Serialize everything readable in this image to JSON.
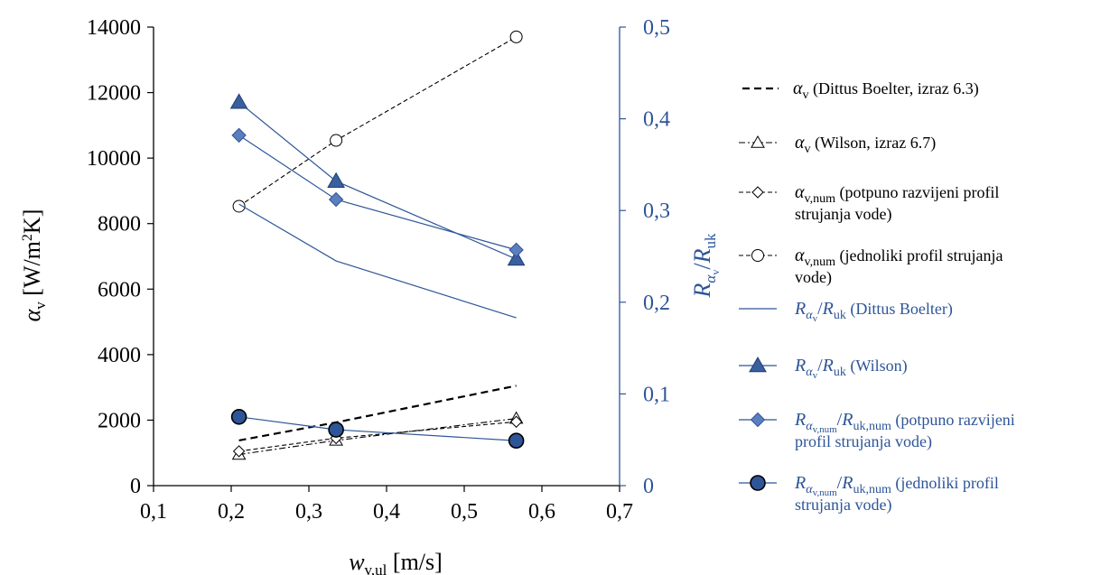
{
  "chart_data": {
    "type": "line",
    "xlabel": {
      "main": "w",
      "sub": "v,ul",
      "unit": " [m/s]"
    },
    "ylabel_left": {
      "main": "α",
      "sub": "v",
      "unit": " [W/m",
      "sup": "2",
      "unit_end": "K]"
    },
    "ylabel_right": {
      "main1": "R",
      "sub1": "α",
      "subsub1": "v",
      "sep": "/",
      "main2": "R",
      "sub2": "uk"
    },
    "x_ticks": [
      0.1,
      0.2,
      0.3,
      0.4,
      0.5,
      0.6,
      0.7
    ],
    "x_tick_labels": [
      "0,1",
      "0,2",
      "0,3",
      "0,4",
      "0,5",
      "0,6",
      "0,7"
    ],
    "xlim": [
      0.1,
      0.7
    ],
    "ylim_left": [
      0,
      14000
    ],
    "y_left_ticks": [
      0,
      2000,
      4000,
      6000,
      8000,
      10000,
      12000,
      14000
    ],
    "y_left_tick_labels": [
      "0",
      "2000",
      "4000",
      "6000",
      "8000",
      "10000",
      "12000",
      "14000"
    ],
    "ylim_right": [
      0,
      0.5
    ],
    "y_right_ticks": [
      0,
      0.1,
      0.2,
      0.3,
      0.4,
      0.5
    ],
    "y_right_tick_labels": [
      "0",
      "0,1",
      "0,2",
      "0,3",
      "0,4",
      "0,5"
    ],
    "axis_colors": {
      "left": "#000000",
      "right": "#2e5597"
    },
    "series": [
      {
        "name": "αv (Dittus Boelter, izraz 6.3)",
        "axis": "left",
        "style": "dashed",
        "color": "#000000",
        "marker": "none",
        "x": [
          0.21,
          0.335,
          0.567
        ],
        "y": [
          1380,
          1930,
          3050
        ]
      },
      {
        "name": "αv (Wilson, izraz 6.7)",
        "axis": "left",
        "style": "dash-dot",
        "color": "#000000",
        "marker": "triangle-open",
        "x": [
          0.21,
          0.335,
          0.567
        ],
        "y": [
          950,
          1380,
          2050
        ]
      },
      {
        "name": "αv,num (potpuno razvijeni profil strujanja vode)",
        "axis": "left",
        "style": "dashed-thin",
        "color": "#000000",
        "marker": "diamond-open",
        "x": [
          0.21,
          0.335,
          0.567
        ],
        "y": [
          1050,
          1450,
          1950
        ]
      },
      {
        "name": "αv,num (jednoliki profil strujanja vode)",
        "axis": "left",
        "style": "dashed-thin",
        "color": "#000000",
        "marker": "circle-open",
        "x": [
          0.21,
          0.335,
          0.567
        ],
        "y": [
          8530,
          10540,
          13700
        ]
      },
      {
        "name": "Rαv/Ruk (Dittus Boelter)",
        "axis": "right",
        "style": "solid",
        "color": "#2e5597",
        "marker": "none",
        "x": [
          0.21,
          0.335,
          0.567
        ],
        "y": [
          0.307,
          0.245,
          0.183
        ]
      },
      {
        "name": "Rαv/Ruk (Wilson)",
        "axis": "right",
        "style": "solid",
        "color": "#2e5597",
        "marker": "triangle-filled",
        "x": [
          0.21,
          0.335,
          0.567
        ],
        "y": [
          0.418,
          0.332,
          0.247
        ]
      },
      {
        "name": "Rαv,num/Ruk,num (potpuno razvijeni profil strujanja vode)",
        "axis": "right",
        "style": "solid",
        "color": "#2e5597",
        "marker": "diamond-filled",
        "x": [
          0.21,
          0.335,
          0.567
        ],
        "y": [
          0.382,
          0.312,
          0.257
        ]
      },
      {
        "name": "Rαv,num/Ruk,num (jednoliki profil strujanja vode)",
        "axis": "right",
        "style": "solid",
        "color": "#2e5597",
        "marker": "circle-filled",
        "x": [
          0.21,
          0.335,
          0.567
        ],
        "y": [
          0.075,
          0.061,
          0.049
        ]
      }
    ],
    "legend": {
      "placement": "right",
      "entries": [
        {
          "color": "#000000",
          "lines": [
            {
              "math": "α",
              "sub": "v",
              "text": " (Dittus Boelter, izraz 6.3)"
            }
          ]
        },
        {
          "color": "#000000",
          "lines": [
            {
              "math": "α",
              "sub": "v",
              "text": " (Wilson, izraz 6.7)"
            }
          ]
        },
        {
          "color": "#000000",
          "lines": [
            {
              "math": "α",
              "sub": "v,num",
              "text": " (potpuno razvijeni profil"
            },
            {
              "text": " strujanja vode)"
            }
          ]
        },
        {
          "color": "#000000",
          "lines": [
            {
              "math": "α",
              "sub": "v,num",
              "text": " (jednoliki profil strujanja"
            },
            {
              "text": "vode)"
            }
          ]
        },
        {
          "color": "#2e5597",
          "lines": [
            {
              "math": "R",
              "sub": "α",
              "subsub": "v",
              "sep": "/",
              "math2": "R",
              "sub2": "uk",
              "text": " (Dittus Boelter)"
            }
          ]
        },
        {
          "color": "#2e5597",
          "lines": [
            {
              "math": "R",
              "sub": "α",
              "subsub": "v",
              "sep": "/",
              "math2": "R",
              "sub2": "uk",
              "text": " (Wilson)"
            }
          ]
        },
        {
          "color": "#2e5597",
          "lines": [
            {
              "math": "R",
              "sub": "α",
              "subsub": "v,num",
              "sep": "/",
              "math2": "R",
              "sub2": "uk,num",
              "text": " (potpuno razvijeni"
            },
            {
              "text": "profil strujanja vode)"
            }
          ]
        },
        {
          "color": "#2e5597",
          "lines": [
            {
              "math": "R",
              "sub": "α",
              "subsub": "v,num",
              "sep": "/",
              "math2": "R",
              "sub2": "uk,num",
              "text": " (jednoliki profil"
            },
            {
              "text": "strujanja vode)"
            }
          ]
        }
      ]
    }
  }
}
